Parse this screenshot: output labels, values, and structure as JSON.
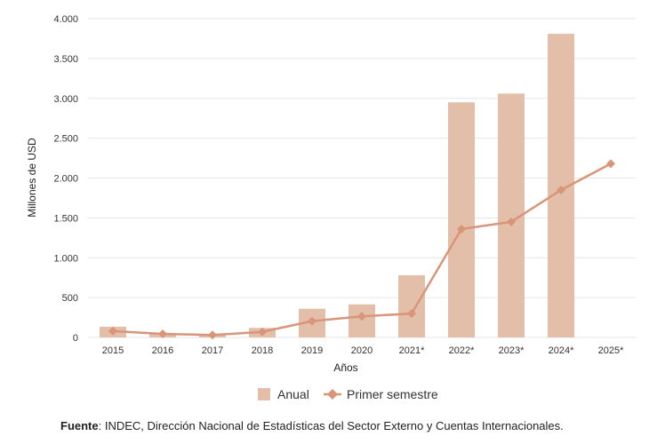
{
  "chart_data": {
    "type": "bar",
    "title": "",
    "xlabel": "Años",
    "ylabel": "Millones de USD",
    "ylim": [
      0,
      4000
    ],
    "yticks": [
      0,
      500,
      1000,
      1500,
      2000,
      2500,
      3000,
      3500,
      4000
    ],
    "ytick_labels": [
      "0",
      "500",
      "1.000",
      "1.500",
      "2.000",
      "2.500",
      "3.000",
      "3.500",
      "4.000"
    ],
    "grid": true,
    "categories": [
      "2015",
      "2016",
      "2017",
      "2018",
      "2019",
      "2020",
      "2021*",
      "2022*",
      "2023*",
      "2024*",
      "2025*"
    ],
    "series": [
      {
        "name": "Anual",
        "type": "bar",
        "color": "#e3bea9",
        "values": [
          135,
          55,
          40,
          120,
          360,
          415,
          780,
          2950,
          3060,
          3810,
          null
        ]
      },
      {
        "name": "Primer semestre",
        "type": "line",
        "marker": "diamond",
        "color": "#d9957a",
        "values": [
          80,
          45,
          30,
          70,
          205,
          265,
          300,
          1360,
          1450,
          1850,
          2180
        ]
      }
    ],
    "legend": {
      "position": "bottom",
      "entries": [
        "Anual",
        "Primer semestre"
      ]
    }
  },
  "source": {
    "label": "Fuente",
    "text": ": INDEC, Dirección Nacional de Estadísticas del Sector Externo y Cuentas Internacionales."
  }
}
